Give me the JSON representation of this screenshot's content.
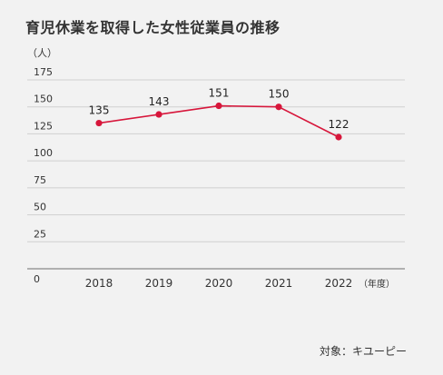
{
  "chart_data": {
    "type": "line",
    "title": "育児休業を取得した女性従業員の推移",
    "ylabel": "（人）",
    "xlabel": "（年度）",
    "categories": [
      "2018",
      "2019",
      "2020",
      "2021",
      "2022"
    ],
    "series": [
      {
        "values": [
          135,
          143,
          151,
          150,
          122
        ]
      }
    ],
    "ylim": [
      0,
      175
    ],
    "yticks": [
      0,
      25,
      50,
      75,
      100,
      125,
      150,
      175
    ],
    "grid": true,
    "colors": {
      "line": "#d7163b",
      "grid": "#d0d0d0",
      "axis": "#888888"
    }
  },
  "source": "対象：キユーピー"
}
